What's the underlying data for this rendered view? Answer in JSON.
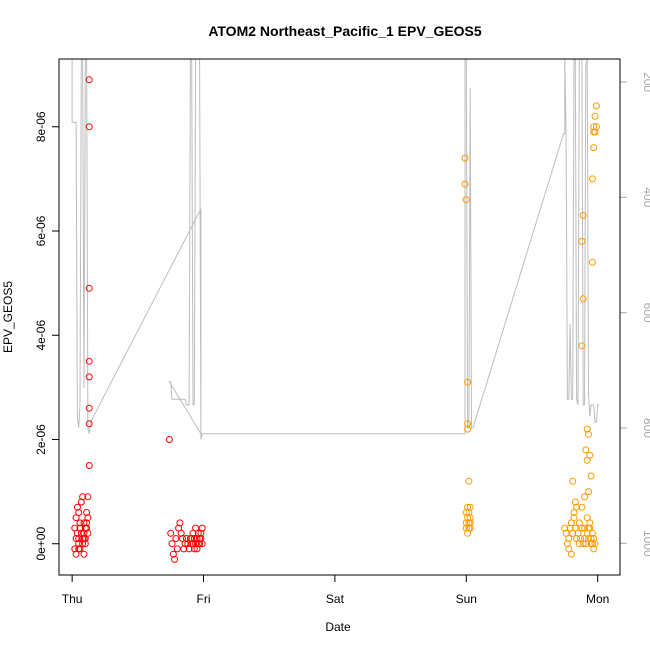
{
  "chart_data": {
    "type": "scatter",
    "title": "ATOM2 Northeast_Pacific_1 EPV_GEOS5",
    "xlabel": "Date",
    "ylabel": "EPV_GEOS5",
    "x_ticks": [
      "Thu",
      "Fri",
      "Sat",
      "Sun",
      "Mon"
    ],
    "y_ticks": [
      "0e+00",
      "2e-06",
      "4e-06",
      "6e-06",
      "8e-06"
    ],
    "y_tick_values": [
      0,
      2e-06,
      4e-06,
      6e-06,
      8e-06
    ],
    "ylim": [
      -6e-07,
      9.3e-06
    ],
    "xlim_days": [
      -0.1,
      4.17
    ],
    "secondary_axis": {
      "ticks": [
        "200",
        "400",
        "600",
        "800",
        "1000"
      ],
      "tick_values": [
        200,
        400,
        600,
        800,
        1000
      ],
      "ylim": [
        1055,
        160
      ],
      "inverted": true,
      "color": "#a8a8a8"
    },
    "grid": false,
    "colors": {
      "red": "#ff0000",
      "orange": "#ff9900",
      "pressure_line": "#bdbdbd",
      "secondary_text": "#a8a8a8"
    },
    "series": [
      {
        "color": "#ff0000",
        "points": [
          [
            0.02,
            3e-07
          ],
          [
            0.03,
            5e-07
          ],
          [
            0.04,
            2e-07
          ],
          [
            0.05,
            1e-07
          ],
          [
            0.06,
            4e-07
          ],
          [
            0.07,
            8e-07
          ],
          [
            0.08,
            9e-07
          ],
          [
            0.02,
            -1e-07
          ],
          [
            0.03,
            -2e-07
          ],
          [
            0.05,
            0.0
          ],
          [
            0.06,
            3e-07
          ],
          [
            0.07,
            2e-07
          ],
          [
            0.08,
            1e-07
          ],
          [
            0.09,
            4e-07
          ],
          [
            0.1,
            3e-07
          ],
          [
            0.04,
            7e-07
          ],
          [
            0.05,
            6e-07
          ],
          [
            0.09,
            2e-07
          ],
          [
            0.1,
            1e-07
          ],
          [
            0.11,
            3e-07
          ],
          [
            0.12,
            5e-07
          ],
          [
            0.03,
            1e-07
          ],
          [
            0.06,
            -1e-07
          ],
          [
            0.08,
            0.0
          ],
          [
            0.09,
            1e-07
          ],
          [
            0.11,
            4e-07
          ],
          [
            0.12,
            2e-07
          ],
          [
            0.11,
            6e-07
          ],
          [
            0.12,
            9e-07
          ],
          [
            0.09,
            -2e-07
          ],
          [
            0.13,
            1.5e-06
          ],
          [
            0.13,
            2.3e-06
          ],
          [
            0.13,
            2.6e-06
          ],
          [
            0.13,
            3.2e-06
          ],
          [
            0.13,
            3.5e-06
          ],
          [
            0.13,
            4.9e-06
          ],
          [
            0.13,
            8e-06
          ],
          [
            0.13,
            8.9e-06
          ],
          [
            0.1,
            0.0
          ],
          [
            0.05,
            -1e-07
          ],
          [
            0.74,
            2e-06
          ],
          [
            0.75,
            2e-07
          ],
          [
            0.76,
            0.0
          ],
          [
            0.77,
            -2e-07
          ],
          [
            0.78,
            -3e-07
          ],
          [
            0.79,
            1e-07
          ],
          [
            0.8,
            -1e-07
          ],
          [
            0.81,
            3e-07
          ],
          [
            0.82,
            4e-07
          ],
          [
            0.83,
            2e-07
          ],
          [
            0.84,
            1e-07
          ],
          [
            0.85,
            -1e-07
          ],
          [
            0.86,
            0.0
          ],
          [
            0.87,
            1e-07
          ],
          [
            0.88,
            0.0
          ],
          [
            0.89,
            -1e-07
          ],
          [
            0.9,
            1e-07
          ],
          [
            0.91,
            0.0
          ],
          [
            0.92,
            2e-07
          ],
          [
            0.93,
            1e-07
          ],
          [
            0.94,
            3e-07
          ],
          [
            0.95,
            1e-07
          ],
          [
            0.96,
            2e-07
          ],
          [
            0.97,
            0.0
          ],
          [
            0.98,
            1e-07
          ],
          [
            0.99,
            3e-07
          ],
          [
            0.97,
            1e-07
          ],
          [
            0.96,
            0.0
          ],
          [
            0.95,
            -1e-07
          ],
          [
            0.94,
            0.0
          ],
          [
            0.93,
            -1e-07
          ],
          [
            0.92,
            0.0
          ],
          [
            0.98,
            2e-07
          ],
          [
            0.99,
            0.0
          ],
          [
            0.91,
            1e-07
          ]
        ]
      },
      {
        "color": "#ff9900",
        "points": [
          [
            2.99,
            7.4e-06
          ],
          [
            2.99,
            6.9e-06
          ],
          [
            3.0,
            6.6e-06
          ],
          [
            3.01,
            3.1e-06
          ],
          [
            3.01,
            2.3e-06
          ],
          [
            3.01,
            2.2e-06
          ],
          [
            3.02,
            1.2e-06
          ],
          [
            3.0,
            6e-07
          ],
          [
            3.01,
            5e-07
          ],
          [
            3.02,
            4e-07
          ],
          [
            3.03,
            7e-07
          ],
          [
            3.0,
            3e-07
          ],
          [
            3.01,
            2e-07
          ],
          [
            3.02,
            3e-07
          ],
          [
            3.03,
            5e-07
          ],
          [
            3.0,
            4e-07
          ],
          [
            3.03,
            3e-07
          ],
          [
            3.02,
            6e-07
          ],
          [
            3.01,
            7e-07
          ],
          [
            3.03,
            4e-07
          ],
          [
            3.75,
            3e-07
          ],
          [
            3.76,
            2e-07
          ],
          [
            3.77,
            0.0
          ],
          [
            3.78,
            1e-07
          ],
          [
            3.79,
            3e-07
          ],
          [
            3.8,
            4e-07
          ],
          [
            3.81,
            2e-07
          ],
          [
            3.82,
            5e-07
          ],
          [
            3.83,
            3e-07
          ],
          [
            3.84,
            1e-07
          ],
          [
            3.85,
            2e-07
          ],
          [
            3.86,
            0.0
          ],
          [
            3.87,
            1e-07
          ],
          [
            3.88,
            3e-07
          ],
          [
            3.89,
            0.0
          ],
          [
            3.9,
            1e-07
          ],
          [
            3.91,
            0.0
          ],
          [
            3.92,
            2e-07
          ],
          [
            3.93,
            1e-07
          ],
          [
            3.94,
            3e-07
          ],
          [
            3.95,
            1e-07
          ],
          [
            3.96,
            0.0
          ],
          [
            3.97,
            1e-07
          ],
          [
            3.98,
            0.0
          ],
          [
            3.78,
            -1e-07
          ],
          [
            3.8,
            -2e-07
          ],
          [
            3.82,
            6e-07
          ],
          [
            3.83,
            8e-07
          ],
          [
            3.84,
            7e-07
          ],
          [
            3.81,
            1.2e-06
          ],
          [
            3.86,
            4e-07
          ],
          [
            3.88,
            7e-07
          ],
          [
            3.9,
            3e-07
          ],
          [
            3.92,
            5e-07
          ],
          [
            3.94,
            4e-07
          ],
          [
            3.96,
            2e-07
          ],
          [
            3.91,
            1.8e-06
          ],
          [
            3.92,
            2.2e-06
          ],
          [
            3.93,
            2.1e-06
          ],
          [
            3.94,
            1.7e-06
          ],
          [
            3.95,
            1.3e-06
          ],
          [
            3.93,
            1e-06
          ],
          [
            3.88,
            3.8e-06
          ],
          [
            3.89,
            4.7e-06
          ],
          [
            3.88,
            5.8e-06
          ],
          [
            3.89,
            6.3e-06
          ],
          [
            3.96,
            5.4e-06
          ],
          [
            3.96,
            7e-06
          ],
          [
            3.97,
            7.6e-06
          ],
          [
            3.97,
            7.9e-06
          ],
          [
            3.98,
            7.9e-06
          ],
          [
            3.98,
            8.2e-06
          ],
          [
            3.99,
            8.4e-06
          ],
          [
            3.99,
            8e-06
          ],
          [
            3.97,
            8e-06
          ],
          [
            3.92,
            1.6e-06
          ],
          [
            3.93,
            3e-07
          ],
          [
            3.95,
            0.0
          ],
          [
            3.97,
            -1e-07
          ],
          [
            3.9,
            9e-07
          ]
        ]
      }
    ],
    "pressure_line": {
      "color": "#bdbdbd",
      "axis": "secondary",
      "points": [
        [
          0.0,
          160
        ],
        [
          0.0,
          270
        ],
        [
          0.03,
          270
        ],
        [
          0.04,
          780
        ],
        [
          0.05,
          800
        ],
        [
          0.06,
          760
        ],
        [
          0.07,
          160
        ],
        [
          0.08,
          160
        ],
        [
          0.09,
          730
        ],
        [
          0.1,
          160
        ],
        [
          0.11,
          160
        ],
        [
          0.12,
          800
        ],
        [
          0.13,
          810
        ],
        [
          0.14,
          790
        ],
        [
          0.98,
          420
        ],
        [
          0.98,
          810
        ],
        [
          0.74,
          720
        ],
        [
          0.75,
          720
        ],
        [
          0.76,
          750
        ],
        [
          0.77,
          750
        ],
        [
          0.78,
          750
        ],
        [
          0.86,
          750
        ],
        [
          0.87,
          760
        ],
        [
          0.88,
          760
        ],
        [
          0.89,
          760
        ],
        [
          0.9,
          160
        ],
        [
          0.91,
          160
        ],
        [
          0.92,
          760
        ],
        [
          0.93,
          760
        ],
        [
          0.94,
          160
        ],
        [
          0.95,
          160
        ],
        [
          0.96,
          160
        ],
        [
          0.97,
          160
        ],
        [
          0.98,
          820
        ],
        [
          0.99,
          810
        ],
        [
          2.99,
          810
        ],
        [
          2.99,
          160
        ],
        [
          3.0,
          160
        ],
        [
          3.01,
          800
        ],
        [
          3.02,
          800
        ],
        [
          3.03,
          210
        ],
        [
          3.04,
          800
        ],
        [
          3.05,
          800
        ],
        [
          3.74,
          290
        ],
        [
          3.75,
          290
        ],
        [
          3.75,
          160
        ],
        [
          3.76,
          290
        ],
        [
          3.77,
          750
        ],
        [
          3.78,
          750
        ],
        [
          3.79,
          620
        ],
        [
          3.8,
          750
        ],
        [
          3.81,
          750
        ],
        [
          3.82,
          160
        ],
        [
          3.83,
          160
        ],
        [
          3.84,
          750
        ],
        [
          3.85,
          760
        ],
        [
          3.86,
          160
        ],
        [
          3.87,
          160
        ],
        [
          3.88,
          160
        ],
        [
          3.89,
          760
        ],
        [
          3.9,
          760
        ],
        [
          3.91,
          170
        ],
        [
          3.92,
          160
        ],
        [
          3.93,
          740
        ],
        [
          3.94,
          780
        ],
        [
          3.95,
          760
        ],
        [
          3.97,
          760
        ],
        [
          3.98,
          790
        ],
        [
          3.99,
          790
        ],
        [
          4.0,
          760
        ],
        [
          4.01,
          760
        ]
      ]
    }
  }
}
